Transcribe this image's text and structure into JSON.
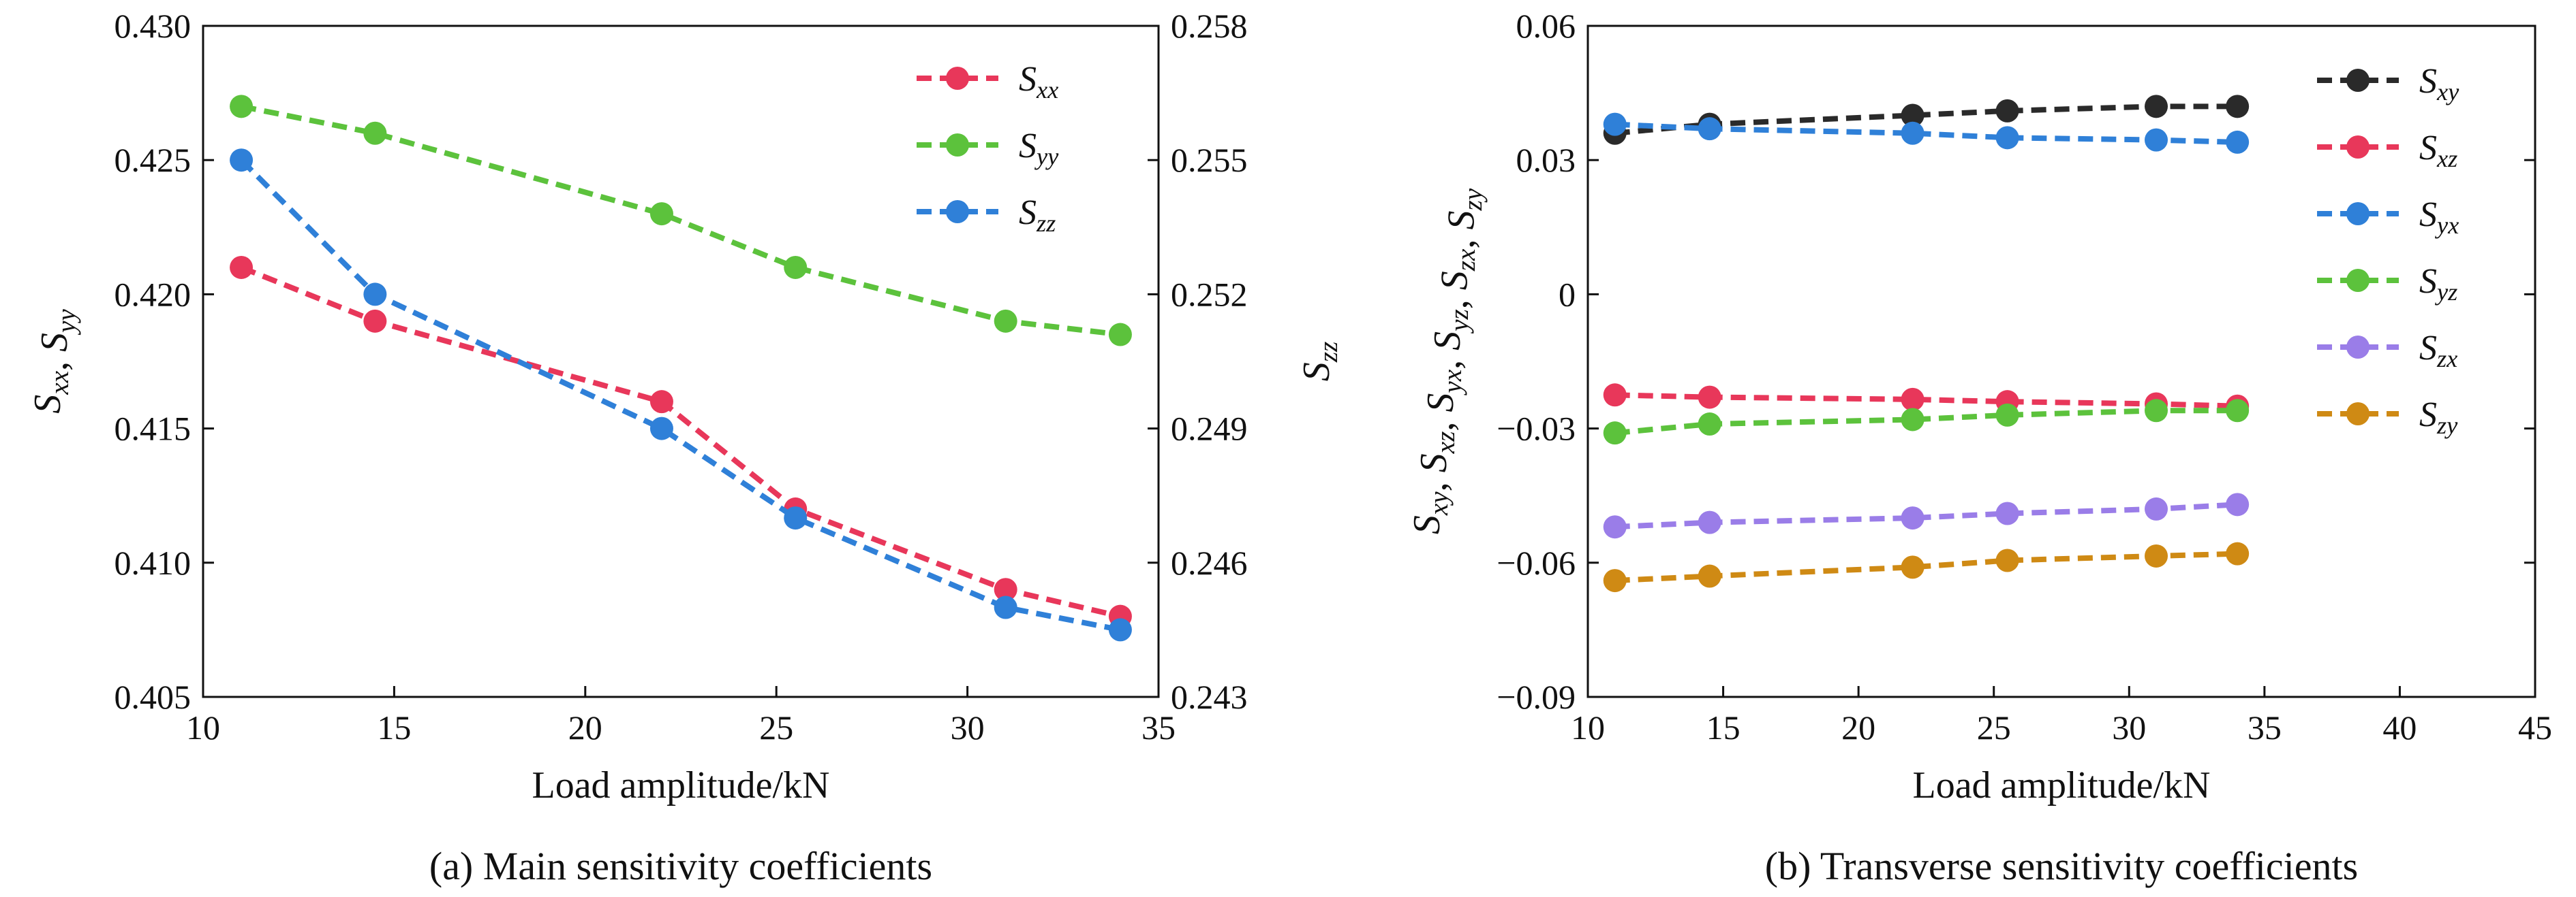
{
  "chart_data": [
    {
      "type": "line",
      "caption": "(a) Main sensitivity coefficients",
      "xlabel": "Load amplitude/kN",
      "ylabel_left": {
        "main": "S",
        "parts": [
          {
            "t": "S",
            "sub": "xx"
          },
          {
            "t": ", S",
            "sub": "yy"
          }
        ]
      },
      "ylabel_right": {
        "parts": [
          {
            "t": "S",
            "sub": "zz"
          }
        ]
      },
      "xlim": [
        10,
        35
      ],
      "xticks": [
        10,
        15,
        20,
        25,
        30,
        35
      ],
      "xtick_labels": [
        "10",
        "15",
        "20",
        "25",
        "30",
        "35"
      ],
      "ylim_left": [
        0.405,
        0.43
      ],
      "yticks_left": [
        0.405,
        0.41,
        0.415,
        0.42,
        0.425,
        0.43
      ],
      "ytick_labels_left": [
        "0.405",
        "0.410",
        "0.415",
        "0.420",
        "0.425",
        "0.430"
      ],
      "ylim_right": [
        0.243,
        0.258
      ],
      "yticks_right": [
        0.243,
        0.246,
        0.249,
        0.252,
        0.255,
        0.258
      ],
      "ytick_labels_right": [
        "0.243",
        "0.246",
        "0.249",
        "0.252",
        "0.255",
        "0.258"
      ],
      "legend_position": "top-right",
      "series": [
        {
          "name": "S",
          "sub": "xx",
          "axis": "left",
          "color": "#e8375a",
          "x": [
            11,
            14.5,
            22,
            25.5,
            31,
            34
          ],
          "y": [
            0.421,
            0.419,
            0.416,
            0.412,
            0.409,
            0.408
          ]
        },
        {
          "name": "S",
          "sub": "yy",
          "axis": "left",
          "color": "#5cc23c",
          "x": [
            11,
            14.5,
            22,
            25.5,
            31,
            34
          ],
          "y": [
            0.427,
            0.426,
            0.423,
            0.421,
            0.419,
            0.4185
          ]
        },
        {
          "name": "S",
          "sub": "zz",
          "axis": "right",
          "color": "#2f80d8",
          "x": [
            11,
            14.5,
            22,
            25.5,
            31,
            34
          ],
          "y": [
            0.255,
            0.252,
            0.249,
            0.247,
            0.245,
            0.2445
          ]
        }
      ]
    },
    {
      "type": "line",
      "caption": "(b) Transverse sensitivity coefficients",
      "xlabel": "Load amplitude/kN",
      "ylabel_left": {
        "parts": [
          {
            "t": "S",
            "sub": "xy"
          },
          {
            "t": ", S",
            "sub": "xz"
          },
          {
            "t": ", S",
            "sub": "yx"
          },
          {
            "t": ", S",
            "sub": "yz"
          },
          {
            "t": ", S",
            "sub": "zx"
          },
          {
            "t": ", S",
            "sub": "zy"
          }
        ]
      },
      "xlim": [
        10,
        45
      ],
      "xticks": [
        10,
        15,
        20,
        25,
        30,
        35,
        40,
        45
      ],
      "xtick_labels": [
        "10",
        "15",
        "20",
        "25",
        "30",
        "35",
        "40",
        "45"
      ],
      "ylim_left": [
        -0.09,
        0.06
      ],
      "yticks_left": [
        -0.09,
        -0.06,
        -0.03,
        0,
        0.03,
        0.06
      ],
      "ytick_labels_left": [
        "−0.09",
        "−0.06",
        "−0.03",
        "0",
        "0.03",
        "0.06"
      ],
      "legend_position": "top-right",
      "series": [
        {
          "name": "S",
          "sub": "xy",
          "axis": "left",
          "color": "#2a2a2a",
          "x": [
            11,
            14.5,
            22,
            25.5,
            31,
            34
          ],
          "y": [
            0.036,
            0.038,
            0.04,
            0.041,
            0.042,
            0.042
          ]
        },
        {
          "name": "S",
          "sub": "xz",
          "axis": "left",
          "color": "#e8375a",
          "x": [
            11,
            14.5,
            22,
            25.5,
            31,
            34
          ],
          "y": [
            -0.0225,
            -0.023,
            -0.0235,
            -0.024,
            -0.0245,
            -0.025
          ]
        },
        {
          "name": "S",
          "sub": "yx",
          "axis": "left",
          "color": "#2f80d8",
          "x": [
            11,
            14.5,
            22,
            25.5,
            31,
            34
          ],
          "y": [
            0.038,
            0.037,
            0.036,
            0.035,
            0.0345,
            0.034
          ]
        },
        {
          "name": "S",
          "sub": "yz",
          "axis": "left",
          "color": "#5cc23c",
          "x": [
            11,
            14.5,
            22,
            25.5,
            31,
            34
          ],
          "y": [
            -0.031,
            -0.029,
            -0.028,
            -0.027,
            -0.026,
            -0.026
          ]
        },
        {
          "name": "S",
          "sub": "zx",
          "axis": "left",
          "color": "#9a7de8",
          "x": [
            11,
            14.5,
            22,
            25.5,
            31,
            34
          ],
          "y": [
            -0.052,
            -0.051,
            -0.05,
            -0.049,
            -0.048,
            -0.047
          ]
        },
        {
          "name": "S",
          "sub": "zy",
          "axis": "left",
          "color": "#cf8a14",
          "x": [
            11,
            14.5,
            22,
            25.5,
            31,
            34
          ],
          "y": [
            -0.064,
            -0.063,
            -0.061,
            -0.0595,
            -0.0585,
            -0.058
          ]
        }
      ]
    }
  ]
}
